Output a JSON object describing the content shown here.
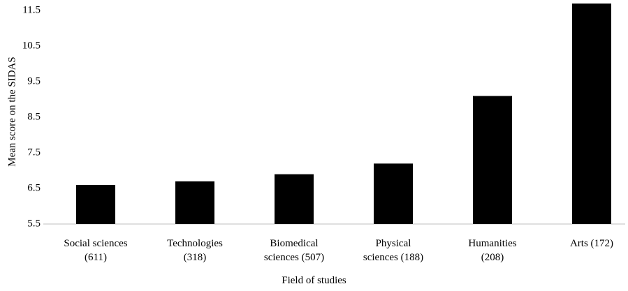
{
  "chart_data": {
    "type": "bar",
    "x_label": "Field of studies",
    "y_label": "Mean score on the SIDAS",
    "categories": [
      "Social sciences\n(611)",
      "Technologies\n(318)",
      "Biomedical\nsciences (507)",
      "Physical\nsciences (188)",
      "Humanities\n(208)",
      "Arts (172)"
    ],
    "values": [
      6.6,
      6.7,
      6.9,
      7.2,
      9.1,
      11.7
    ],
    "color": "#000000",
    "ylim": [
      5.5,
      11.8
    ],
    "yticks": [
      5.5,
      6.5,
      7.5,
      8.5,
      9.5,
      10.5,
      11.5
    ],
    "grid": false
  }
}
